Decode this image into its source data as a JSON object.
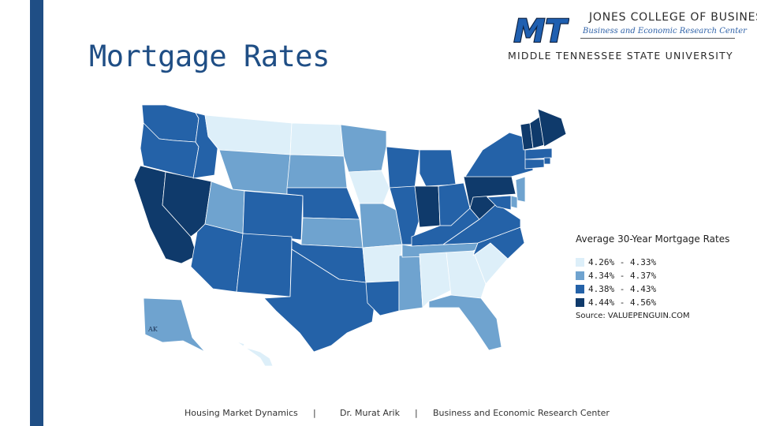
{
  "slide": {
    "title": "Mortgage Rates"
  },
  "logo": {
    "monogram": "MT",
    "college": "JONES COLLEGE OF BUSINESS",
    "center": "Business and Economic Research Center",
    "university": "MIDDLE TENNESSEE STATE UNIVERSITY"
  },
  "colors": {
    "accent": "#1f4e85",
    "class1": "#ddeff9",
    "class2": "#6fa3cf",
    "class3": "#2462a8",
    "class4": "#0f3a6b"
  },
  "map_data": {
    "legend_title": "Average 30-Year Mortgage Rates",
    "classes": [
      {
        "label": "4.26% - 4.33%",
        "color": "#ddeff9"
      },
      {
        "label": "4.34% - 4.37%",
        "color": "#6fa3cf"
      },
      {
        "label": "4.38% - 4.43%",
        "color": "#2462a8"
      },
      {
        "label": "4.44% - 4.56%",
        "color": "#0f3a6b"
      }
    ],
    "states": {
      "WA": 3,
      "OR": 3,
      "CA": 4,
      "NV": 4,
      "ID": 3,
      "MT": 1,
      "WY": 2,
      "UT": 2,
      "AZ": 3,
      "CO": 3,
      "NM": 3,
      "ND": 1,
      "SD": 2,
      "NE": 3,
      "KS": 2,
      "OK": 3,
      "TX": 3,
      "MN": 2,
      "IA": 1,
      "MO": 2,
      "AR": 1,
      "LA": 3,
      "WI": 3,
      "IL": 3,
      "MS": 2,
      "MI": 3,
      "IN": 4,
      "OH": 3,
      "KY": 3,
      "TN": 2,
      "AL": 1,
      "GA": 1,
      "FL": 2,
      "SC": 1,
      "NC": 3,
      "VA": 3,
      "WV": 4,
      "PA": 4,
      "NY": 3,
      "VT": 4,
      "NH": 4,
      "ME": 4,
      "MA": 3,
      "RI": 3,
      "CT": 3,
      "NJ": 2,
      "DE": 2,
      "MD": 3,
      "AK": 2,
      "HI": 1
    },
    "map_labels": [
      "AK"
    ],
    "source": "Source: VALUEPENGUIN.COM"
  },
  "footer": {
    "topic": "Housing Market Dynamics",
    "sep1": "|",
    "author": "Dr. Murat Arik",
    "sep2": "|",
    "center": "Business and Economic Research Center"
  }
}
